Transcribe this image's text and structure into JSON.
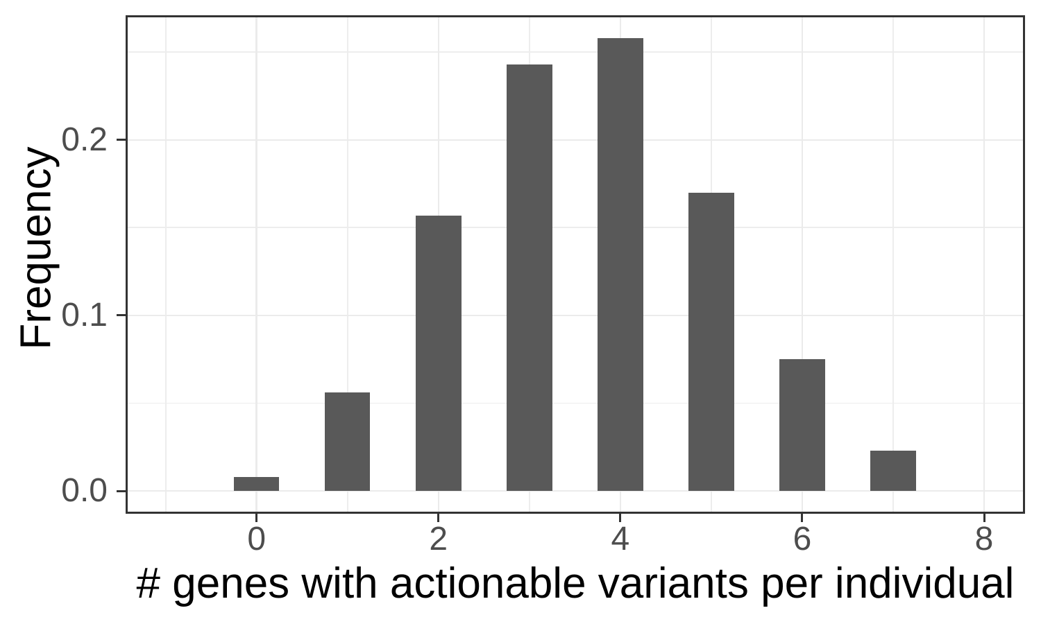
{
  "chart_data": {
    "type": "bar",
    "title": "",
    "xlabel": "# genes with actionable variants per individual",
    "ylabel": "Frequency",
    "categories": [
      0,
      1,
      2,
      3,
      4,
      5,
      6,
      7
    ],
    "values": [
      0.008,
      0.056,
      0.157,
      0.243,
      0.258,
      0.17,
      0.075,
      0.023
    ],
    "bar_width": 0.5,
    "xlim": [
      -1.44,
      8.45
    ],
    "ylim": [
      -0.013,
      0.271
    ],
    "x_ticks": [
      {
        "value": 0,
        "label": "0"
      },
      {
        "value": 2,
        "label": "2"
      },
      {
        "value": 4,
        "label": "4"
      },
      {
        "value": 6,
        "label": "6"
      },
      {
        "value": 8,
        "label": "8"
      }
    ],
    "x_minor_breaks": [
      -1,
      1,
      3,
      5,
      7
    ],
    "y_ticks": [
      {
        "value": 0,
        "label": "0.0"
      },
      {
        "value": 0.1,
        "label": "0.1"
      },
      {
        "value": 0.2,
        "label": "0.2"
      }
    ],
    "y_minor_breaks": [
      0.05,
      0.15,
      0.25
    ],
    "grid": "major+minor",
    "legend": "none",
    "colors": {
      "bar_fill": "#595959",
      "grid_major": "#ebebeb",
      "grid_minor": "#ededed",
      "panel_border": "#333333",
      "tick_mark": "#333333",
      "tick_label": "#4d4d4d",
      "axis_title": "#000000",
      "panel_background": "#ffffff",
      "figure_background": "#ffffff"
    }
  }
}
